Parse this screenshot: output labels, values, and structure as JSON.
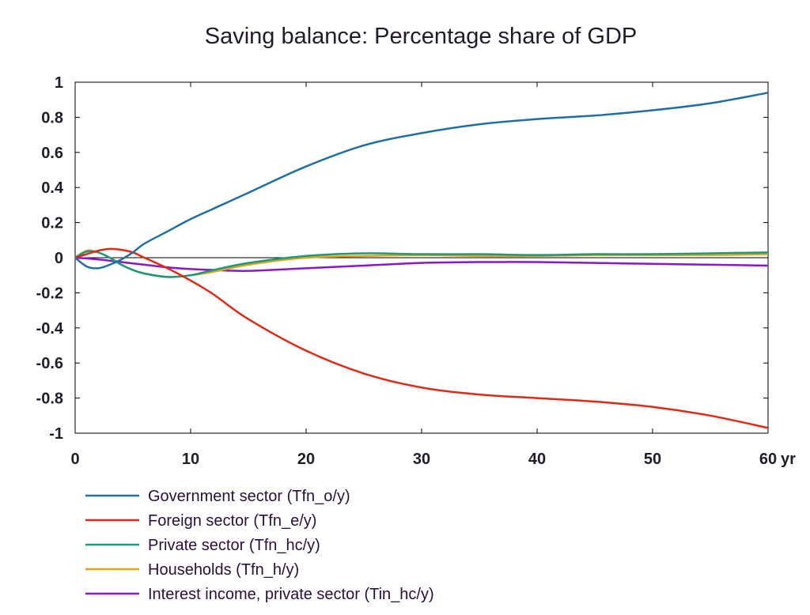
{
  "chart_data": {
    "type": "line",
    "title": "Saving balance: Percentage share of GDP",
    "xlabel": "",
    "ylabel": "",
    "x_unit_label": "yr",
    "xlim": [
      0,
      60
    ],
    "ylim": [
      -1,
      1
    ],
    "x_ticks": [
      0,
      10,
      20,
      30,
      40,
      50,
      60
    ],
    "y_ticks": [
      1,
      0.8,
      0.6,
      0.4,
      0.2,
      0,
      -0.2,
      -0.4,
      -0.6,
      -0.8,
      -1
    ],
    "x_tick_labels": [
      "0",
      "10",
      "20",
      "30",
      "40",
      "50",
      "60"
    ],
    "y_tick_labels": [
      "1",
      "0.8",
      "0.6",
      "0.4",
      "0.2",
      "0",
      "-0.2",
      "-0.4",
      "-0.6",
      "-0.8",
      "-1"
    ],
    "grid": false,
    "zero_line": true,
    "legend_position": "bottom",
    "series": [
      {
        "name": "Government sector (Tfn_o/y)",
        "color": "#1f6fa6",
        "points": [
          [
            0,
            0
          ],
          [
            1,
            -0.05
          ],
          [
            2,
            -0.06
          ],
          [
            3,
            -0.04
          ],
          [
            4,
            -0.01
          ],
          [
            5,
            0.03
          ],
          [
            6,
            0.08
          ],
          [
            8,
            0.15
          ],
          [
            10,
            0.22
          ],
          [
            12,
            0.28
          ],
          [
            15,
            0.37
          ],
          [
            20,
            0.52
          ],
          [
            25,
            0.64
          ],
          [
            30,
            0.71
          ],
          [
            35,
            0.76
          ],
          [
            40,
            0.79
          ],
          [
            45,
            0.81
          ],
          [
            50,
            0.84
          ],
          [
            55,
            0.88
          ],
          [
            60,
            0.94
          ]
        ]
      },
      {
        "name": "Foreign sector (Tfn_e/y)",
        "color": "#e02a17",
        "points": [
          [
            0,
            0
          ],
          [
            1,
            0.02
          ],
          [
            2,
            0.04
          ],
          [
            3,
            0.05
          ],
          [
            4,
            0.045
          ],
          [
            5,
            0.03
          ],
          [
            6,
            0.0
          ],
          [
            8,
            -0.06
          ],
          [
            10,
            -0.13
          ],
          [
            12,
            -0.21
          ],
          [
            15,
            -0.35
          ],
          [
            20,
            -0.53
          ],
          [
            25,
            -0.66
          ],
          [
            30,
            -0.74
          ],
          [
            35,
            -0.78
          ],
          [
            40,
            -0.8
          ],
          [
            45,
            -0.82
          ],
          [
            50,
            -0.85
          ],
          [
            55,
            -0.9
          ],
          [
            60,
            -0.97
          ]
        ]
      },
      {
        "name": "Private sector (Tfn_hc/y)",
        "color": "#1a9a7a",
        "points": [
          [
            0,
            0
          ],
          [
            1,
            0.035
          ],
          [
            2,
            0.03
          ],
          [
            3,
            0.0
          ],
          [
            4,
            -0.04
          ],
          [
            5,
            -0.07
          ],
          [
            6,
            -0.09
          ],
          [
            8,
            -0.11
          ],
          [
            10,
            -0.1
          ],
          [
            12,
            -0.07
          ],
          [
            15,
            -0.03
          ],
          [
            20,
            0.01
          ],
          [
            25,
            0.025
          ],
          [
            30,
            0.02
          ],
          [
            35,
            0.02
          ],
          [
            40,
            0.015
          ],
          [
            45,
            0.02
          ],
          [
            50,
            0.02
          ],
          [
            55,
            0.025
          ],
          [
            60,
            0.03
          ]
        ]
      },
      {
        "name": "Households (Tfn_h/y)",
        "color": "#e0a21a",
        "points": [
          [
            0,
            0
          ],
          [
            1,
            0.04
          ],
          [
            2,
            0.03
          ],
          [
            3,
            0.0
          ],
          [
            4,
            -0.04
          ],
          [
            5,
            -0.07
          ],
          [
            6,
            -0.09
          ],
          [
            8,
            -0.11
          ],
          [
            10,
            -0.1
          ],
          [
            12,
            -0.08
          ],
          [
            15,
            -0.04
          ],
          [
            20,
            0.0
          ],
          [
            25,
            0.01
          ],
          [
            30,
            0.015
          ],
          [
            35,
            0.01
          ],
          [
            40,
            0.01
          ],
          [
            45,
            0.015
          ],
          [
            50,
            0.015
          ],
          [
            55,
            0.015
          ],
          [
            60,
            0.02
          ]
        ]
      },
      {
        "name": "Interest income, private sector (Tin_hc/y)",
        "color": "#8a17c9",
        "points": [
          [
            0,
            0
          ],
          [
            2,
            -0.01
          ],
          [
            4,
            -0.025
          ],
          [
            6,
            -0.04
          ],
          [
            8,
            -0.055
          ],
          [
            10,
            -0.065
          ],
          [
            12,
            -0.07
          ],
          [
            15,
            -0.075
          ],
          [
            20,
            -0.06
          ],
          [
            25,
            -0.045
          ],
          [
            30,
            -0.03
          ],
          [
            35,
            -0.025
          ],
          [
            40,
            -0.025
          ],
          [
            45,
            -0.03
          ],
          [
            50,
            -0.035
          ],
          [
            55,
            -0.04
          ],
          [
            60,
            -0.045
          ]
        ]
      }
    ]
  }
}
